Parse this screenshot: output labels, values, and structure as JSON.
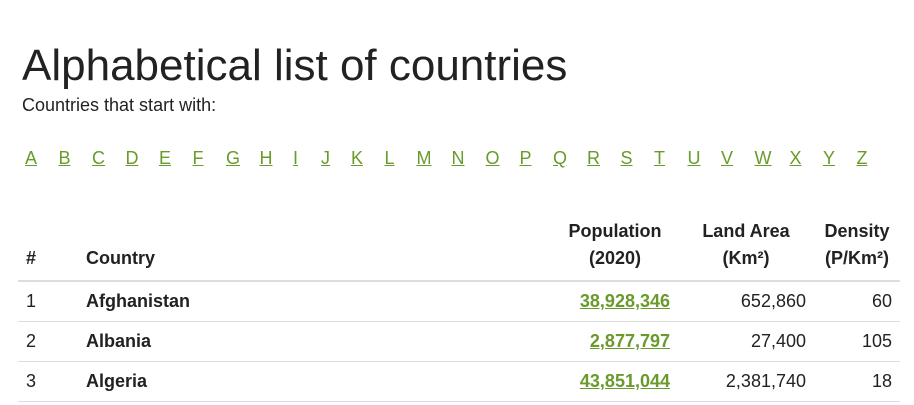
{
  "title": "Alphabetical list of countries",
  "subtitle": "Countries that start with:",
  "letters": [
    "A",
    "B",
    "C",
    "D",
    "E",
    "F",
    "G",
    "H",
    "I",
    "J",
    "K",
    "L",
    "M",
    "N",
    "O",
    "P",
    "Q",
    "R",
    "S",
    "T",
    "U",
    "V",
    "W",
    "X",
    "Y",
    "Z"
  ],
  "table": {
    "headers": {
      "num": "#",
      "country": "Country",
      "population_line1": "Population",
      "population_line2": "(2020)",
      "area_line1": "Land Area",
      "area_line2": "(Km²)",
      "density_line1": "Density",
      "density_line2": "(P/Km²)"
    },
    "rows": [
      {
        "num": "1",
        "country": "Afghanistan",
        "population": "38,928,346",
        "area": "652,860",
        "density": "60"
      },
      {
        "num": "2",
        "country": "Albania",
        "population": "2,877,797",
        "area": "27,400",
        "density": "105"
      },
      {
        "num": "3",
        "country": "Algeria",
        "population": "43,851,044",
        "area": "2,381,740",
        "density": "18"
      }
    ]
  },
  "colors": {
    "link": "#6a9a2c",
    "text": "#222222",
    "border": "#dddddd"
  }
}
